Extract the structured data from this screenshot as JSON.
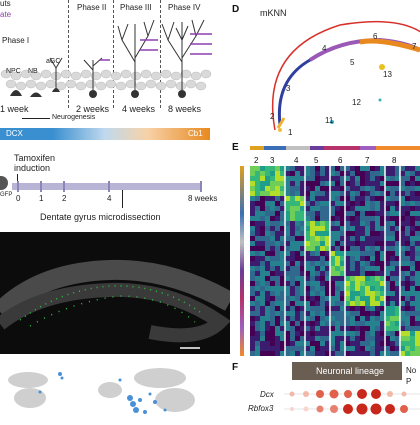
{
  "panel_letters": {
    "D": "D",
    "E": "E",
    "F": "F"
  },
  "panelA": {
    "top_cut_text": "uts",
    "ate_text": "ate",
    "phase_labels": [
      "Phase I",
      "Phase II",
      "Phase III",
      "Phase IV"
    ],
    "cell_labels": [
      "NPC",
      "NB",
      "aGC"
    ],
    "week_labels": [
      "1 week",
      "2 weeks",
      "4 weeks",
      "8 weeks"
    ],
    "neurogenesis_label": "Neurogenesis",
    "dcx_label": "DCX",
    "cb1_label": "Cb1",
    "colors": {
      "dcx": "#3a8fd0",
      "cb1": "#e8891f"
    }
  },
  "panelB": {
    "tamoxifen_line1": "Tamoxifen",
    "tamoxifen_line2": "induction",
    "ticks": [
      "0",
      "1",
      "2",
      "4",
      "8 weeks"
    ],
    "microdissection_label": "Dentate gyrus microdissection",
    "gfp_label": "GFP"
  },
  "panelD": {
    "title": "mKNN",
    "cluster_labels": [
      "1",
      "2",
      "3",
      "4",
      "5",
      "6",
      "7",
      "11",
      "12",
      "13"
    ]
  },
  "panelE": {
    "cluster_labels": [
      "2",
      "3",
      "4",
      "5",
      "6",
      "7",
      "8"
    ],
    "cluster_colors": [
      "#e0a020",
      "#3b6fb5",
      "#c0c0c0",
      "#6a3d9a",
      "#b5326a",
      "#9e5fc0",
      "#f08a2a"
    ]
  },
  "panelF": {
    "header_label": "Neuronal lineage",
    "header_label2": "No",
    "header_label3": "P",
    "genes": [
      "Dcx",
      "Rbfox3"
    ]
  }
}
